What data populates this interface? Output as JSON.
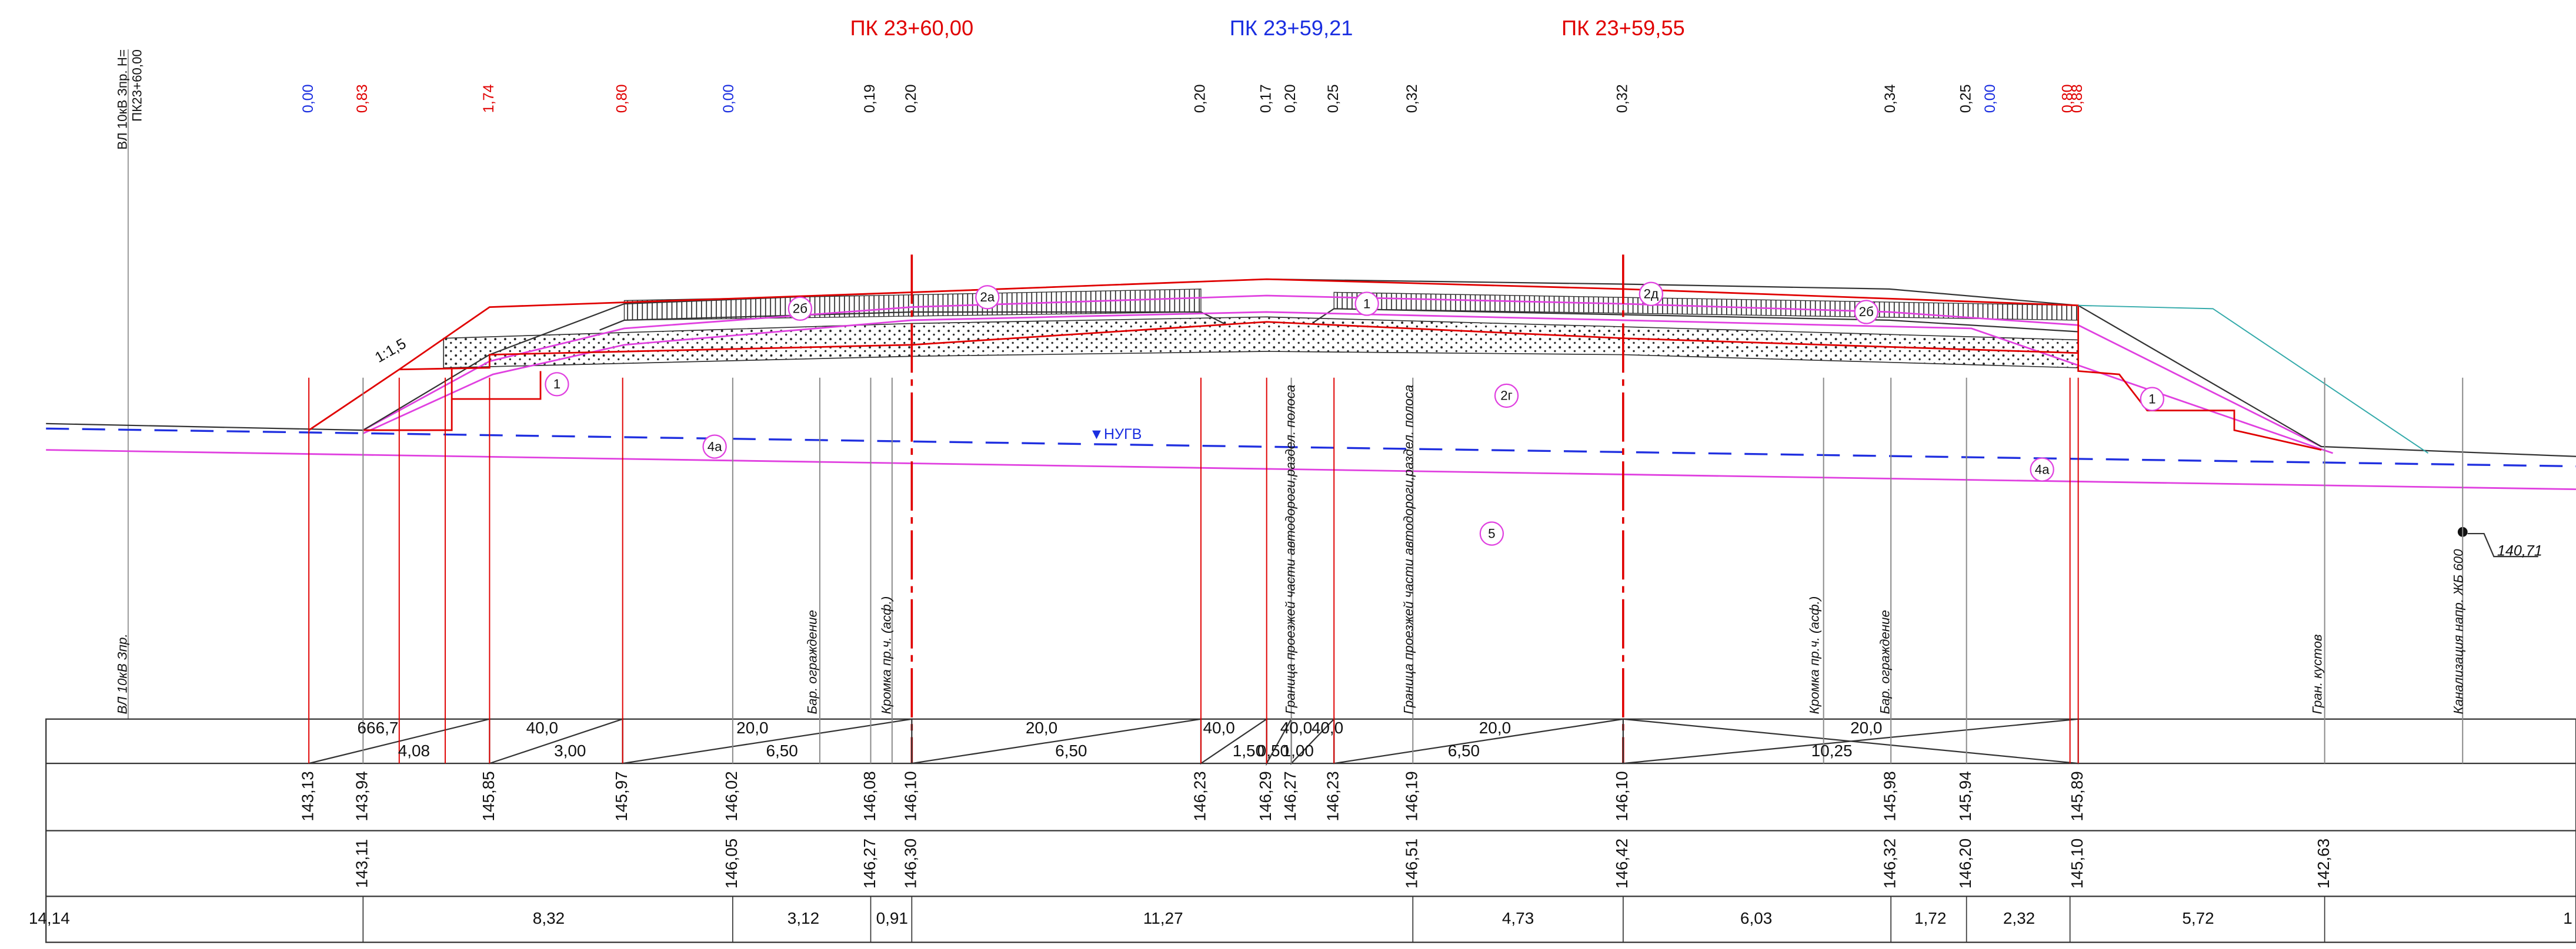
{
  "header": {
    "stations": [
      "ПК 23+60,00",
      "ПК 23+59,21",
      "ПК 23+59,55"
    ]
  },
  "left_labels": [
    "ВЛ 10кВ Зпр. Н=",
    "ПК23+60,00"
  ],
  "top_marks": [
    "0,00",
    "0,83",
    "1,74",
    "0,80",
    "0,00",
    "0,19",
    "0,20",
    "0,20",
    "0,17",
    "0,20",
    "0,25",
    "0,32",
    "0,32",
    "0,34",
    "0,25",
    "0,00",
    "0,80",
    "0,88"
  ],
  "section_labels": {
    "slope": "1:1,5",
    "water": "▼НУГВ",
    "level": "140,71"
  },
  "layer_tags": [
    "1",
    "2б",
    "2а",
    "1",
    "2г",
    "2д",
    "2б",
    "1",
    "4а",
    "4а",
    "5"
  ],
  "features": [
    "ВЛ 10кВ Зпр.",
    "Бар. ограждение",
    "Кромка пр.ч. (асф.)",
    "Граница проезжей части автодороги,раздел. полоса",
    "Граница проезжей части автодороги,раздел. полоса",
    "Кромка пр.ч. (асф.)",
    "Бар. ограждение",
    "Гран. кустов",
    "Канализация напр. ЖБ 600"
  ],
  "table": {
    "slopes_top": [
      "666,7",
      "40,0",
      "20,0",
      "20,0",
      "40,0",
      "40,0",
      "40,0",
      "20,0",
      "20,0"
    ],
    "slopes_bottom": [
      "4,08",
      "3,00",
      "6,50",
      "6,50",
      "1,50",
      "0,50",
      "1,00",
      "6,50",
      "10,25"
    ],
    "design_elevations": [
      "143,13",
      "143,94",
      "145,85",
      "145,97",
      "146,02",
      "146,08",
      "146,10",
      "146,23",
      "146,29",
      "146,27",
      "146,23",
      "146,19",
      "146,10",
      "145,98",
      "145,94",
      "145,89"
    ],
    "existing_elevations": [
      "143,11",
      "146,05",
      "146,27",
      "146,30",
      "146,51",
      "146,42",
      "146,32",
      "146,20",
      "145,10",
      "142,63"
    ],
    "distances": [
      "14,14",
      "8,32",
      "3,12",
      "0,91",
      "11,27",
      "4,73",
      "6,03",
      "1,72",
      "2,32",
      "5,72",
      "1"
    ]
  }
}
